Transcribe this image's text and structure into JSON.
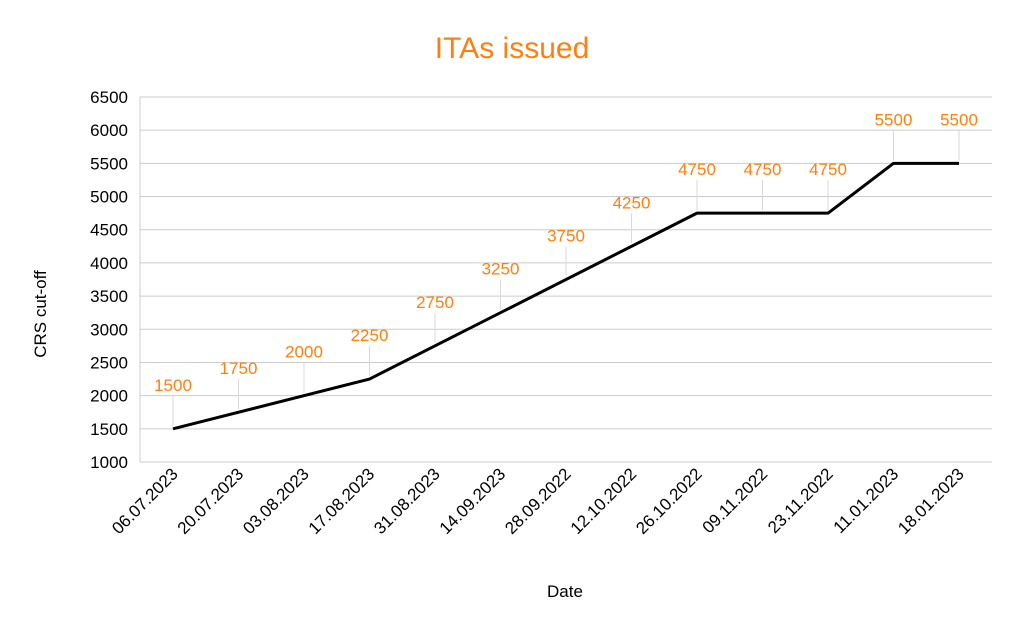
{
  "colors": {
    "title": "#ff7f0e",
    "data_label": "#ff7f0e",
    "line": "#000000",
    "grid": "#cccccc",
    "leader": "#d9d9d9"
  },
  "chart_data": {
    "type": "line",
    "title": "ITAs issued",
    "xlabel": "Date",
    "ylabel": "CRS cut-off",
    "ylim": [
      1000,
      6500
    ],
    "yticks": [
      1000,
      1500,
      2000,
      2500,
      3000,
      3500,
      4000,
      4500,
      5000,
      5500,
      6000,
      6500
    ],
    "grid": true,
    "categories": [
      "06.07.2023",
      "20.07.2023",
      "03.08.2023",
      "17.08.2023",
      "31.08.2023",
      "14.09.2023",
      "28.09.2022",
      "12.10.2022",
      "26.10.2022",
      "09.11.2022",
      "23.11.2022",
      "11.01.2023",
      "18.01.2023"
    ],
    "series": [
      {
        "name": "CRS cut-off",
        "values": [
          1500,
          null,
          null,
          2250,
          null,
          null,
          null,
          null,
          4750,
          4750,
          4750,
          5500,
          5500
        ]
      }
    ],
    "data_labels": [
      1500,
      1750,
      2000,
      2250,
      2750,
      3250,
      3750,
      4250,
      4750,
      4750,
      4750,
      5500,
      5500
    ]
  }
}
